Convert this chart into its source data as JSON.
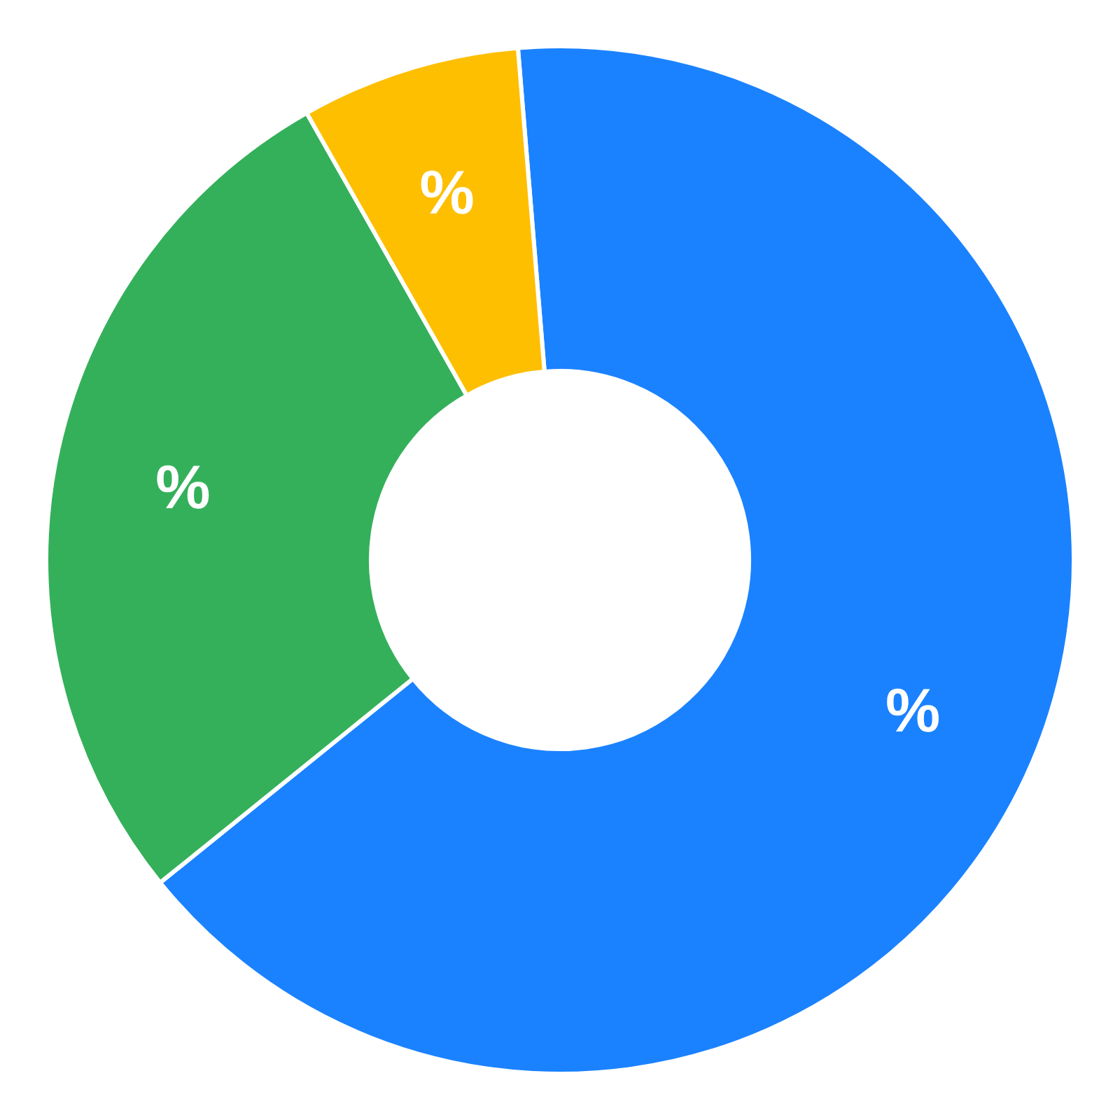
{
  "chart_data": {
    "type": "donut",
    "categories": [
      null,
      null,
      null
    ],
    "values": [
      65.5,
      27.6,
      6.9
    ],
    "colors": [
      "#1a82ff",
      "#34b05a",
      "#fdbf00"
    ],
    "value_labels": [
      "%",
      "%",
      "%"
    ]
  }
}
